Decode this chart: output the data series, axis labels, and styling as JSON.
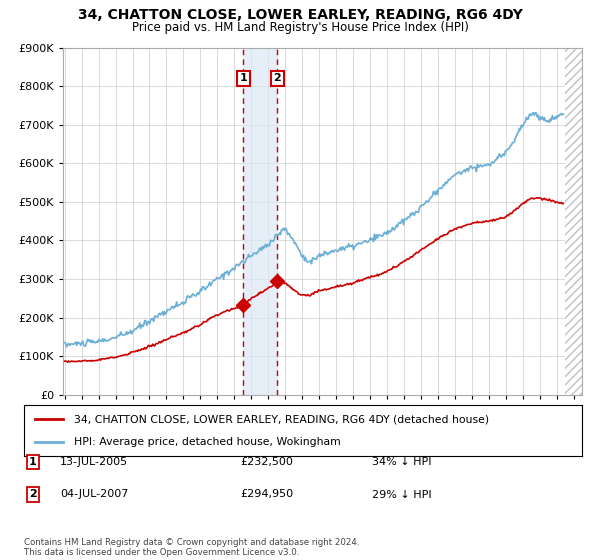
{
  "title": "34, CHATTON CLOSE, LOWER EARLEY, READING, RG6 4DY",
  "subtitle": "Price paid vs. HM Land Registry's House Price Index (HPI)",
  "legend_line1": "34, CHATTON CLOSE, LOWER EARLEY, READING, RG6 4DY (detached house)",
  "legend_line2": "HPI: Average price, detached house, Wokingham",
  "annotation1_label": "1",
  "annotation1_date": "13-JUL-2005",
  "annotation1_price": "£232,500",
  "annotation1_hpi": "34% ↓ HPI",
  "annotation1_year": 2005.53,
  "annotation1_value": 232500,
  "annotation2_label": "2",
  "annotation2_date": "04-JUL-2007",
  "annotation2_price": "£294,950",
  "annotation2_hpi": "29% ↓ HPI",
  "annotation2_year": 2007.53,
  "annotation2_value": 294950,
  "footer": "Contains HM Land Registry data © Crown copyright and database right 2024.\nThis data is licensed under the Open Government Licence v3.0.",
  "hpi_color": "#6baed6",
  "price_color": "#cc0000",
  "ylim": [
    0,
    900000
  ],
  "yticks": [
    0,
    100000,
    200000,
    300000,
    400000,
    500000,
    600000,
    700000,
    800000,
    900000
  ],
  "xlim_start": 1995,
  "xlim_end": 2025,
  "shade_color": "#dce9f5",
  "background_color": "#ffffff",
  "grid_color": "#cccccc",
  "hatch_start": 2024.5
}
